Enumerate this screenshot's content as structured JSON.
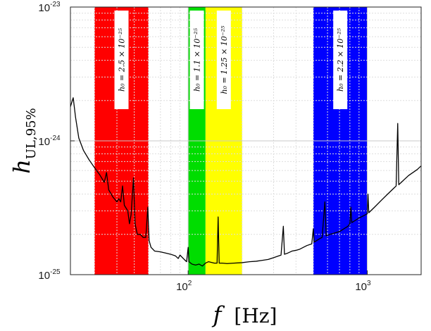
{
  "chart_data": {
    "type": "line",
    "xscale": "log",
    "yscale": "log",
    "xlim": [
      22,
      2000
    ],
    "ylim": [
      1e-25,
      1e-23
    ],
    "grid": true,
    "xlabel": "f  [Hz]",
    "ylabel": "h_UL,95%",
    "x_ticks": [
      {
        "base": "10",
        "exp": "2",
        "value": 100
      },
      {
        "base": "10",
        "exp": "3",
        "value": 1000
      }
    ],
    "y_ticks": [
      {
        "base": "10",
        "exp": "-25",
        "value": 1e-25
      },
      {
        "base": "10",
        "exp": "-24",
        "value": 1e-24
      },
      {
        "base": "10",
        "exp": "-23",
        "value": 1e-23
      }
    ],
    "bands": [
      {
        "f_min": 30,
        "f_max": 60,
        "color": "#ff0000",
        "label": "h₀ = 2.5 × 10⁻²⁵"
      },
      {
        "f_min": 100,
        "f_max": 125,
        "color": "#00dd00",
        "label": "h₀ = 1.1 × 10⁻²⁵"
      },
      {
        "f_min": 125,
        "f_max": 200,
        "color": "#ffff00",
        "label": "h₀ = 1.25 × 10⁻²⁵"
      },
      {
        "f_min": 500,
        "f_max": 1000,
        "color": "#0000ff",
        "label": "h₀ = 2.2 × 10⁻²⁵"
      }
    ],
    "series": [
      {
        "color": "#000000",
        "points": [
          [
            22,
            1.8e-24
          ],
          [
            22.8,
            2.1e-24
          ],
          [
            23.5,
            1.5e-24
          ],
          [
            24.5,
            1.05e-24
          ],
          [
            26,
            8.5e-25
          ],
          [
            28,
            7.2e-25
          ],
          [
            30,
            6.3e-25
          ],
          [
            32,
            5.6e-25
          ],
          [
            34,
            4.9e-25
          ],
          [
            35,
            5.8e-25
          ],
          [
            36,
            4.3e-25
          ],
          [
            38,
            3.8e-25
          ],
          [
            40,
            3.5e-25
          ],
          [
            41,
            3.7e-25
          ],
          [
            42,
            3.5e-25
          ],
          [
            43,
            4.6e-25
          ],
          [
            44,
            3.3e-25
          ],
          [
            46,
            3e-25
          ],
          [
            47,
            2.4e-25
          ],
          [
            48,
            2.8e-25
          ],
          [
            49.5,
            5.3e-25
          ],
          [
            50.5,
            2.4e-25
          ],
          [
            52,
            2e-25
          ],
          [
            54,
            2e-25
          ],
          [
            56,
            1.9e-25
          ],
          [
            58,
            1.9e-25
          ],
          [
            59.5,
            3.2e-25
          ],
          [
            60.5,
            1.8e-25
          ],
          [
            62,
            1.6e-25
          ],
          [
            65,
            1.5e-25
          ],
          [
            70,
            1.48e-25
          ],
          [
            75,
            1.45e-25
          ],
          [
            80,
            1.42e-25
          ],
          [
            85,
            1.38e-25
          ],
          [
            88,
            1.32e-25
          ],
          [
            90,
            1.4e-25
          ],
          [
            95,
            1.3e-25
          ],
          [
            98,
            1.25e-25
          ],
          [
            100,
            1.6e-25
          ],
          [
            101,
            1.25e-25
          ],
          [
            105,
            1.2e-25
          ],
          [
            110,
            1.18e-25
          ],
          [
            115,
            1.2e-25
          ],
          [
            120,
            1.16e-25
          ],
          [
            125,
            1.22e-25
          ],
          [
            130,
            1.25e-25
          ],
          [
            140,
            1.22e-25
          ],
          [
            145,
            1.22e-25
          ],
          [
            147,
            2.7e-25
          ],
          [
            149,
            1.22e-25
          ],
          [
            155,
            1.22e-25
          ],
          [
            165,
            1.21e-25
          ],
          [
            180,
            1.22e-25
          ],
          [
            200,
            1.23e-25
          ],
          [
            220,
            1.25e-25
          ],
          [
            240,
            1.26e-25
          ],
          [
            260,
            1.28e-25
          ],
          [
            280,
            1.3e-25
          ],
          [
            300,
            1.34e-25
          ],
          [
            320,
            1.38e-25
          ],
          [
            330,
            1.4e-25
          ],
          [
            340,
            2.3e-25
          ],
          [
            345,
            1.42e-25
          ],
          [
            360,
            1.45e-25
          ],
          [
            380,
            1.5e-25
          ],
          [
            400,
            1.52e-25
          ],
          [
            420,
            1.55e-25
          ],
          [
            440,
            1.6e-25
          ],
          [
            460,
            1.65e-25
          ],
          [
            490,
            1.7e-25
          ],
          [
            500,
            2.2e-25
          ],
          [
            505,
            1.75e-25
          ],
          [
            540,
            1.85e-25
          ],
          [
            560,
            1.9e-25
          ],
          [
            580,
            3.5e-25
          ],
          [
            590,
            1.95e-25
          ],
          [
            620,
            2e-25
          ],
          [
            660,
            2.05e-25
          ],
          [
            700,
            2.1e-25
          ],
          [
            740,
            2.2e-25
          ],
          [
            780,
            2.3e-25
          ],
          [
            800,
            2.4e-25
          ],
          [
            810,
            3.2e-25
          ],
          [
            820,
            2.45e-25
          ],
          [
            860,
            2.55e-25
          ],
          [
            900,
            2.65e-25
          ],
          [
            950,
            2.75e-25
          ],
          [
            1000,
            2.85e-25
          ],
          [
            1010,
            4e-25
          ],
          [
            1020,
            2.9e-25
          ],
          [
            1100,
            3.2e-25
          ],
          [
            1200,
            3.6e-25
          ],
          [
            1300,
            4e-25
          ],
          [
            1400,
            4.4e-25
          ],
          [
            1450,
            4.6e-25
          ],
          [
            1480,
            1.35e-24
          ],
          [
            1500,
            4.7e-25
          ],
          [
            1550,
            4.9e-25
          ],
          [
            1600,
            5.1e-25
          ],
          [
            1700,
            5.5e-25
          ],
          [
            1800,
            5.8e-25
          ],
          [
            1900,
            6.1e-25
          ],
          [
            2000,
            6.5e-25
          ]
        ]
      }
    ]
  }
}
